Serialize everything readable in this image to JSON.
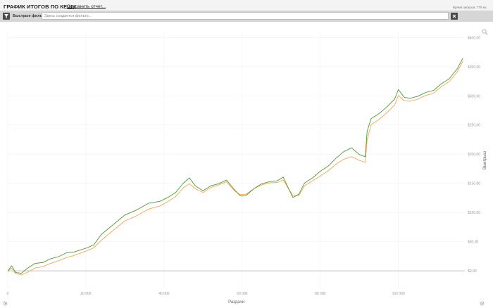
{
  "header": {
    "title": "ГРАФИК ИТОГОВ ПО КЕШУ",
    "save_link": "Сохранить отчет...",
    "request_time": "Время запроса: 770 мс"
  },
  "filters": {
    "quick_label": "Быстрые фильт",
    "placeholder": "Здесь создается фильтр..."
  },
  "icons": {
    "filter": "filter-icon",
    "clear": "close-icon",
    "zoom": "search-icon",
    "settings_left": "gear-icon",
    "settings_right": "gear-icon"
  },
  "colors": {
    "series_green": "#4e9a2a",
    "series_orange": "#f5a45a",
    "zero_line": "#aaaaaa",
    "grid": "#f1f1f1"
  },
  "chart_data": {
    "type": "line",
    "xlabel": "Раздачи",
    "ylabel": "Выигрыш",
    "xlim": [
      0,
      117000
    ],
    "ylim": [
      -30,
      410
    ],
    "x_ticks": [
      0,
      20000,
      40000,
      60000,
      80000,
      100000
    ],
    "x_tick_labels": [
      "0",
      "20 000",
      "40 000",
      "60 000",
      "80 000",
      "100 000"
    ],
    "y_ticks": [
      0,
      50,
      100,
      150,
      200,
      250,
      300,
      350,
      400
    ],
    "y_tick_labels": [
      "$0,00",
      "$50,00",
      "$100,00",
      "$150,00",
      "$200,00",
      "$250,00",
      "$300,00",
      "$350,00",
      "$400,00"
    ],
    "grid": true,
    "legend": "none",
    "series": [
      {
        "color": "#4e9a2a",
        "x": [
          0,
          1000,
          2000,
          3500,
          5000,
          7000,
          9000,
          11000,
          13000,
          15000,
          17000,
          20000,
          22000,
          24000,
          27000,
          30000,
          33000,
          36000,
          39000,
          41000,
          43000,
          45000,
          46500,
          48000,
          50000,
          52000,
          54000,
          56000,
          58000,
          59500,
          61000,
          63000,
          65000,
          67000,
          69000,
          70500,
          72000,
          73000,
          74500,
          76000,
          78000,
          80000,
          82000,
          84000,
          86000,
          88000,
          90000,
          91500,
          92000,
          93000,
          95000,
          97000,
          99000,
          100000,
          101500,
          103000,
          105000,
          107000,
          109000,
          111000,
          113000,
          115000,
          116500
        ],
        "values": [
          0,
          8,
          -2,
          -5,
          5,
          12,
          15,
          20,
          25,
          30,
          33,
          38,
          45,
          62,
          80,
          95,
          105,
          115,
          120,
          125,
          135,
          150,
          160,
          145,
          138,
          145,
          150,
          155,
          140,
          128,
          130,
          140,
          150,
          152,
          155,
          160,
          140,
          125,
          132,
          150,
          160,
          170,
          180,
          192,
          205,
          210,
          200,
          195,
          240,
          260,
          270,
          280,
          295,
          310,
          298,
          295,
          300,
          305,
          310,
          320,
          330,
          345,
          365
        ]
      },
      {
        "color": "#f5a45a",
        "x": [
          0,
          1000,
          2000,
          3500,
          5000,
          7000,
          9000,
          11000,
          13000,
          15000,
          17000,
          20000,
          22000,
          24000,
          27000,
          30000,
          33000,
          36000,
          39000,
          41000,
          43000,
          45000,
          46500,
          48000,
          50000,
          52000,
          54000,
          56000,
          58000,
          59500,
          61000,
          63000,
          65000,
          67000,
          69000,
          70500,
          72000,
          73000,
          74500,
          76000,
          78000,
          80000,
          82000,
          84000,
          86000,
          88000,
          90000,
          91500,
          92000,
          93000,
          95000,
          97000,
          99000,
          100000,
          101500,
          103000,
          105000,
          107000,
          109000,
          111000,
          113000,
          115000,
          116500
        ],
        "values": [
          0,
          4,
          -4,
          -8,
          -2,
          4,
          8,
          12,
          18,
          22,
          27,
          33,
          40,
          52,
          70,
          85,
          95,
          105,
          112,
          118,
          128,
          142,
          150,
          140,
          135,
          142,
          148,
          152,
          138,
          130,
          132,
          140,
          148,
          150,
          152,
          155,
          140,
          128,
          130,
          145,
          155,
          162,
          172,
          182,
          192,
          195,
          190,
          185,
          225,
          250,
          260,
          270,
          285,
          300,
          292,
          290,
          295,
          300,
          305,
          315,
          325,
          340,
          360
        ]
      }
    ]
  }
}
